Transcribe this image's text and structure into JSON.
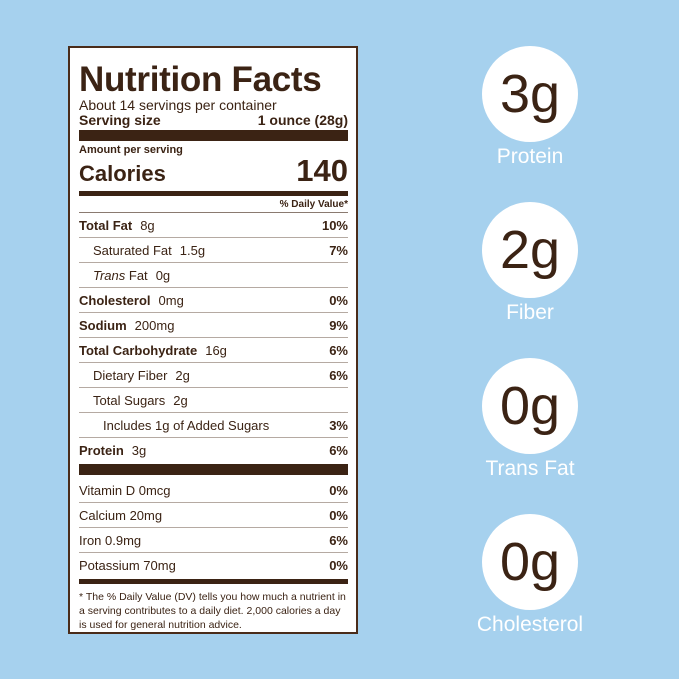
{
  "label": {
    "title": "Nutrition Facts",
    "servings": "About 14 servings per container",
    "serving_size_label": "Serving size",
    "serving_size": "1 ounce (28g)",
    "amount_per_serving": "Amount per serving",
    "calories_label": "Calories",
    "calories": 140,
    "dv_header": "% Daily Value*",
    "rows": [
      {
        "name": "Total Fat",
        "amount": "8g",
        "dv": "10%"
      },
      {
        "name": "Saturated Fat",
        "amount": "1.5g",
        "dv": "7%"
      },
      {
        "name_italic": "Trans",
        "name": "Fat",
        "amount": "0g"
      },
      {
        "name": "Cholesterol",
        "amount": "0mg",
        "dv": "0%"
      },
      {
        "name": "Sodium",
        "amount": "200mg",
        "dv": "9%"
      },
      {
        "name": "Total Carbohydrate",
        "amount": "16g",
        "dv": "6%"
      },
      {
        "name": "Dietary Fiber",
        "amount": "2g",
        "dv": "6%"
      },
      {
        "name": "Total Sugars",
        "amount": "2g"
      },
      {
        "name": "Includes 1g of Added Sugars",
        "dv": "3%"
      },
      {
        "name": "Protein",
        "amount": "3g",
        "dv": "6%"
      }
    ],
    "vitamins": [
      {
        "name": "Vitamin D 0mcg",
        "dv": "0%"
      },
      {
        "name": "Calcium 20mg",
        "dv": "0%"
      },
      {
        "name": "Iron 0.9mg",
        "dv": "6%"
      },
      {
        "name": "Potassium 70mg",
        "dv": "0%"
      }
    ],
    "footnote": "* The % Daily Value (DV) tells you how much a nutrient in a serving contributes to a daily diet. 2,000 calories a day is used for general nutrition advice."
  },
  "highlights": [
    {
      "value": "3g",
      "label": "Protein"
    },
    {
      "value": "2g",
      "label": "Fiber"
    },
    {
      "value": "0g",
      "label": "Trans Fat"
    },
    {
      "value": "0g",
      "label": "Cholesterol"
    }
  ]
}
